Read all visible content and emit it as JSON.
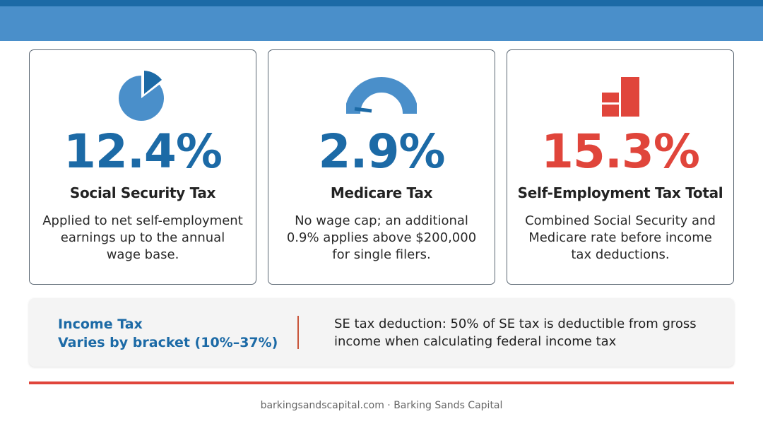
{
  "colors": {
    "primary_blue": "#1c6aa6",
    "header_blue": "#4a8fca",
    "accent_red": "#e0453b"
  },
  "cards": [
    {
      "icon": "pie-chart-icon",
      "value": "12.4%",
      "title": "Social Security Tax",
      "description": "Applied to net self-employment earnings up to the annual wage base."
    },
    {
      "icon": "gauge-icon",
      "value": "2.9%",
      "title": "Medicare Tax",
      "description": "No wage cap; an additional 0.9% applies above $200,000 for single filers."
    },
    {
      "icon": "bar-chart-icon",
      "value": "15.3%",
      "title": "Self-Employment Tax Total",
      "description": "Combined Social Security and Medicare rate before income tax deductions."
    }
  ],
  "income_tax": {
    "label": "Income Tax",
    "range": "Varies by bracket (10%–37%)",
    "note_line1": "SE tax deduction: 50% of SE tax is deductible from gross",
    "note_line2": "income when calculating federal income tax"
  },
  "footer": {
    "text": "barkingsandscapital.com · Barking Sands Capital"
  }
}
